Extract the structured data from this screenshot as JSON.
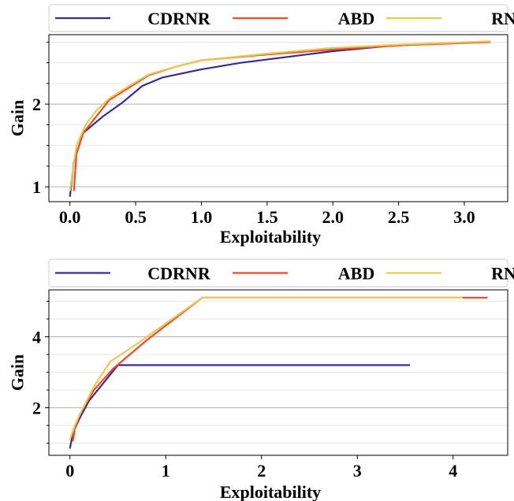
{
  "chart_data": [
    {
      "type": "line",
      "xlabel": "Exploitability",
      "ylabel": "Gain",
      "xlim": [
        -0.16,
        3.33
      ],
      "ylim": [
        0.82,
        2.84
      ],
      "xticks": [
        0.0,
        0.5,
        1.0,
        1.5,
        2.0,
        2.5,
        3.0
      ],
      "xtick_labels": [
        "0.0",
        "0.5",
        "1.0",
        "1.5",
        "2.0",
        "2.5",
        "3.0"
      ],
      "yticks": [
        1,
        2
      ],
      "ytick_labels": [
        "1",
        "2"
      ],
      "yminor": [
        1.25,
        1.5,
        1.75,
        2.25,
        2.5,
        2.75
      ],
      "grid": true,
      "legend_position": "top",
      "series": [
        {
          "name": "CDRNR",
          "color": "#3a2a96",
          "points": [
            [
              0.0,
              0.88
            ],
            [
              0.03,
              1.3
            ],
            [
              0.1,
              1.65
            ],
            [
              0.25,
              1.85
            ],
            [
              0.4,
              2.02
            ],
            [
              0.55,
              2.22
            ],
            [
              0.7,
              2.32
            ],
            [
              1.0,
              2.42
            ],
            [
              1.3,
              2.5
            ],
            [
              1.7,
              2.58
            ],
            [
              2.0,
              2.64
            ],
            [
              2.4,
              2.7
            ],
            [
              2.74,
              2.73
            ]
          ]
        },
        {
          "name": "ABD",
          "color": "#f24a2a",
          "points": [
            [
              0.03,
              0.95
            ],
            [
              0.05,
              1.4
            ],
            [
              0.1,
              1.65
            ],
            [
              0.2,
              1.85
            ],
            [
              0.3,
              2.05
            ],
            [
              0.45,
              2.2
            ],
            [
              0.6,
              2.35
            ],
            [
              0.8,
              2.45
            ],
            [
              1.0,
              2.53
            ],
            [
              1.5,
              2.6
            ],
            [
              2.0,
              2.66
            ],
            [
              2.5,
              2.71
            ],
            [
              3.2,
              2.75
            ]
          ]
        },
        {
          "name": "RNR",
          "color": "#e8ca50",
          "points": [
            [
              0.0,
              0.95
            ],
            [
              0.05,
              1.5
            ],
            [
              0.12,
              1.75
            ],
            [
              0.2,
              1.92
            ],
            [
              0.3,
              2.07
            ],
            [
              0.45,
              2.22
            ],
            [
              0.6,
              2.36
            ],
            [
              0.8,
              2.45
            ],
            [
              1.0,
              2.53
            ],
            [
              1.5,
              2.61
            ],
            [
              2.0,
              2.68
            ],
            [
              2.5,
              2.72
            ],
            [
              3.2,
              2.76
            ]
          ]
        }
      ]
    },
    {
      "type": "line",
      "xlabel": "Exploitability",
      "ylabel": "Gain",
      "xlim": [
        -0.22,
        4.57
      ],
      "ylim": [
        0.66,
        5.32
      ],
      "xticks": [
        0,
        1,
        2,
        3,
        4
      ],
      "xtick_labels": [
        "0",
        "1",
        "2",
        "3",
        "4"
      ],
      "yticks": [
        2,
        4
      ],
      "ytick_labels": [
        "2",
        "4"
      ],
      "yminor": [
        1,
        1.5,
        2.5,
        3,
        3.5,
        4.5,
        5
      ],
      "grid": true,
      "legend_position": "top",
      "series": [
        {
          "name": "CDRNR",
          "color": "#3a2a96",
          "points": [
            [
              0.0,
              0.85
            ],
            [
              0.03,
              1.3
            ],
            [
              0.1,
              1.7
            ],
            [
              0.2,
              2.2
            ],
            [
              0.35,
              2.7
            ],
            [
              0.5,
              3.2
            ],
            [
              3.55,
              3.2
            ]
          ]
        },
        {
          "name": "ABD",
          "color": "#f24a2a",
          "points": [
            [
              0.03,
              1.05
            ],
            [
              0.05,
              1.4
            ],
            [
              0.1,
              1.8
            ],
            [
              0.25,
              2.5
            ],
            [
              0.45,
              3.1
            ],
            [
              0.8,
              3.9
            ],
            [
              1.38,
              5.1
            ],
            [
              4.36,
              5.1
            ]
          ]
        },
        {
          "name": "RNR",
          "color": "#e8ca50",
          "points": [
            [
              0.0,
              1.1
            ],
            [
              0.05,
              1.5
            ],
            [
              0.12,
              1.9
            ],
            [
              0.25,
              2.6
            ],
            [
              0.42,
              3.3
            ],
            [
              0.7,
              3.8
            ],
            [
              1.38,
              5.1
            ],
            [
              4.1,
              5.1
            ]
          ]
        }
      ]
    }
  ]
}
